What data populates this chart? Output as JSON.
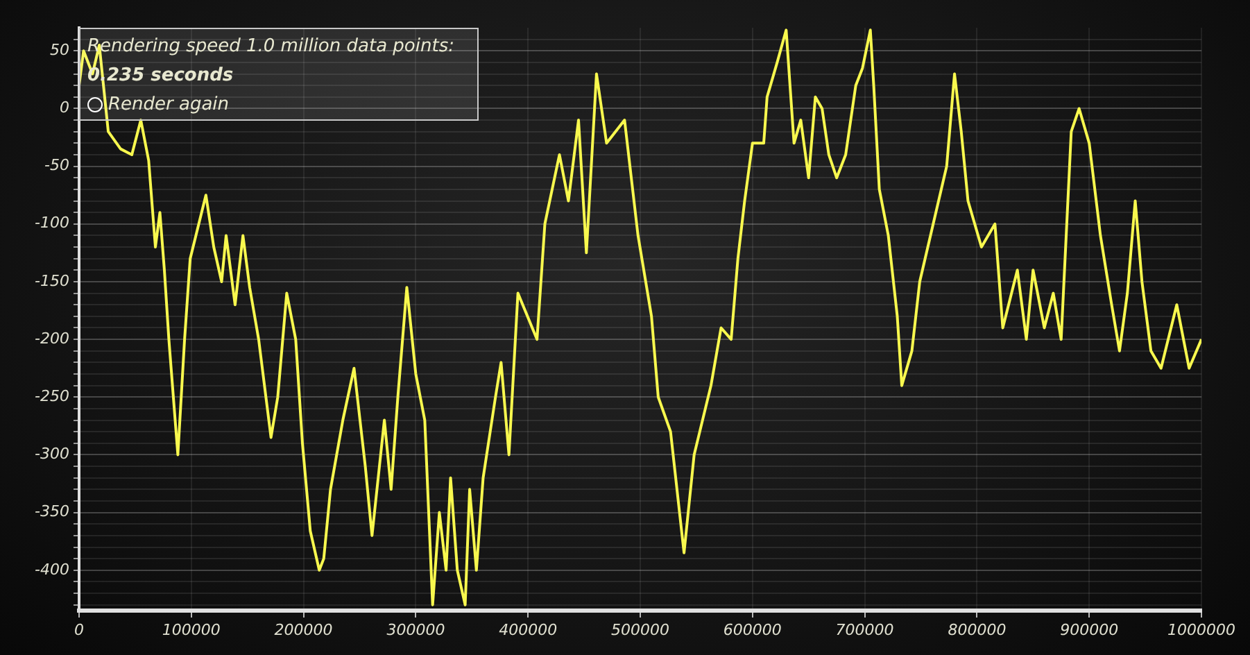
{
  "chart_data": {
    "type": "line",
    "annotations": [
      "Rendering speed 1.0 million data points:",
      "0.235 seconds",
      "Render again"
    ],
    "x": [
      0,
      4000,
      12000,
      18000,
      26000,
      37000,
      47000,
      55000,
      62000,
      68000,
      72000,
      76000,
      80000,
      88000,
      94000,
      99000,
      113000,
      120000,
      127000,
      131000,
      139000,
      146000,
      152000,
      160000,
      171000,
      177000,
      185000,
      193000,
      199000,
      206000,
      214000,
      218000,
      224000,
      235000,
      245000,
      255000,
      261000,
      272000,
      278000,
      284000,
      292000,
      300000,
      308000,
      315000,
      321000,
      327000,
      331000,
      337000,
      344000,
      348000,
      354000,
      360000,
      371000,
      376000,
      383000,
      391000,
      408000,
      415000,
      428000,
      436000,
      445000,
      452000,
      461000,
      470000,
      486000,
      498000,
      510000,
      516000,
      527000,
      539000,
      548000,
      563000,
      572000,
      581000,
      587000,
      593000,
      600000,
      610000,
      613000,
      622000,
      630000,
      637000,
      643000,
      650000,
      656000,
      662000,
      668000,
      675000,
      683000,
      692000,
      698000,
      705000,
      708000,
      713000,
      721000,
      729000,
      733000,
      742000,
      749000,
      761000,
      773000,
      780000,
      786000,
      792000,
      804000,
      816000,
      823000,
      836000,
      844000,
      850000,
      860000,
      868000,
      875000,
      884000,
      891000,
      900000,
      910000,
      920000,
      927000,
      934000,
      941000,
      947000,
      955000,
      964000,
      978000,
      989000,
      1000000
    ],
    "values": [
      20,
      50,
      30,
      55,
      -20,
      -35,
      -40,
      -10,
      -45,
      -120,
      -90,
      -140,
      -200,
      -300,
      -200,
      -130,
      -75,
      -120,
      -150,
      -110,
      -170,
      -110,
      -155,
      -200,
      -285,
      -250,
      -160,
      -200,
      -290,
      -366,
      -400,
      -390,
      -330,
      -270,
      -225,
      -310,
      -370,
      -270,
      -330,
      -250,
      -155,
      -230,
      -270,
      -430,
      -350,
      -400,
      -320,
      -400,
      -430,
      -330,
      -400,
      -320,
      -250,
      -220,
      -300,
      -160,
      -200,
      -100,
      -40,
      -80,
      -10,
      -125,
      30,
      -30,
      -10,
      -110,
      -180,
      -250,
      -280,
      -385,
      -300,
      -240,
      -190,
      -200,
      -130,
      -80,
      -30,
      -30,
      10,
      40,
      68,
      -30,
      -10,
      -60,
      10,
      0,
      -40,
      -60,
      -40,
      20,
      35,
      68,
      20,
      -70,
      -110,
      -180,
      -240,
      -210,
      -150,
      -100,
      -50,
      30,
      -20,
      -80,
      -120,
      -100,
      -190,
      -140,
      -200,
      -140,
      -190,
      -160,
      -200,
      -20,
      0,
      -30,
      -110,
      -170,
      -210,
      -160,
      -80,
      -150,
      -210,
      -225,
      -170,
      -225,
      -200
    ],
    "color": "#f8f84e",
    "line_style": "solid",
    "marker": "none",
    "grid": true,
    "legend": false,
    "xlim": [
      0,
      1000000
    ],
    "xticks": [
      0,
      100000,
      200000,
      300000,
      400000,
      500000,
      600000,
      700000,
      800000,
      900000,
      1000000
    ],
    "ylim": [
      -435,
      70
    ],
    "yticks": [
      {
        "value": -430,
        "label": null
      },
      {
        "value": -420,
        "label": null
      },
      {
        "value": -410,
        "label": null
      },
      -400,
      {
        "value": -390,
        "label": null
      },
      {
        "value": -380,
        "label": null
      },
      {
        "value": -370,
        "label": null
      },
      {
        "value": -360,
        "label": null
      },
      -350,
      {
        "value": -340,
        "label": null
      },
      {
        "value": -330,
        "label": null
      },
      {
        "value": -320,
        "label": null
      },
      {
        "value": -310,
        "label": null
      },
      -300,
      {
        "value": -290,
        "label": null
      },
      {
        "value": -280,
        "label": null
      },
      {
        "value": -270,
        "label": null
      },
      {
        "value": -260,
        "label": null
      },
      -250,
      {
        "value": -240,
        "label": null
      },
      {
        "value": -230,
        "label": null
      },
      {
        "value": -220,
        "label": null
      },
      {
        "value": -210,
        "label": null
      },
      -200,
      {
        "value": -190,
        "label": null
      },
      {
        "value": -180,
        "label": null
      },
      {
        "value": -170,
        "label": null
      },
      {
        "value": -160,
        "label": null
      },
      -150,
      {
        "value": -140,
        "label": null
      },
      {
        "value": -130,
        "label": null
      },
      {
        "value": -120,
        "label": null
      },
      {
        "value": -110,
        "label": null
      },
      -100,
      {
        "value": -90,
        "label": null
      },
      {
        "value": -80,
        "label": null
      },
      {
        "value": -70,
        "label": null
      },
      {
        "value": -60,
        "label": null
      },
      -50,
      {
        "value": -40,
        "label": null
      },
      {
        "value": -30,
        "label": null
      },
      {
        "value": -20,
        "label": null
      },
      {
        "value": -10,
        "label": null
      },
      0,
      {
        "value": 10,
        "label": null
      },
      {
        "value": 20,
        "label": null
      },
      {
        "value": 30,
        "label": null
      },
      {
        "value": 40,
        "label": null
      },
      50,
      {
        "value": 60,
        "label": null
      }
    ]
  }
}
